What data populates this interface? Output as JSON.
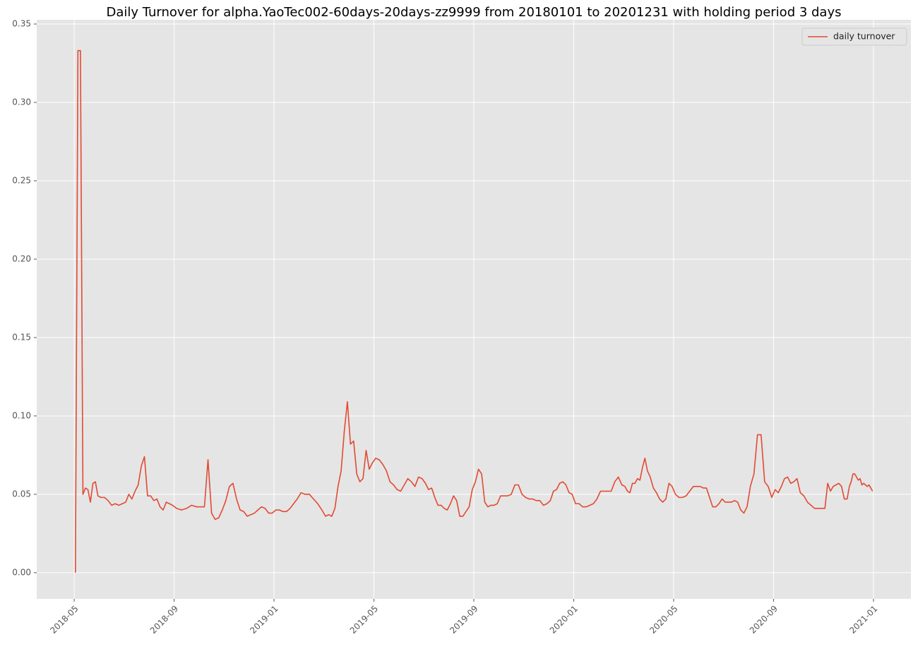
{
  "chart_data": {
    "type": "line",
    "title": "Daily Turnover for alpha.YaoTec002-60days-20days-zz9999 from 20180101 to 20201231 with holding period 3 days",
    "x": [
      "2018-05",
      "2018-05",
      "2018-05",
      "2018-05",
      "2018-05",
      "2018-05",
      "2018-05",
      "2018-05",
      "2018-05",
      "2018-05",
      "2018-06",
      "2018-06",
      "2018-06",
      "2018-06",
      "2018-06",
      "2018-06",
      "2018-06",
      "2018-07",
      "2018-07",
      "2018-07",
      "2018-07",
      "2018-07",
      "2018-07",
      "2018-07",
      "2018-07",
      "2018-08",
      "2018-08",
      "2018-08",
      "2018-08",
      "2018-08",
      "2018-08",
      "2018-08",
      "2018-08",
      "2018-09",
      "2018-09",
      "2018-09",
      "2018-09",
      "2018-09",
      "2018-10",
      "2018-10",
      "2018-10",
      "2018-10",
      "2018-10",
      "2018-10",
      "2018-10",
      "2018-11",
      "2018-11",
      "2018-11",
      "2018-11",
      "2018-11",
      "2018-11",
      "2018-11",
      "2018-12",
      "2018-12",
      "2018-12",
      "2018-12",
      "2018-12",
      "2018-12",
      "2018-12",
      "2019-01",
      "2019-01",
      "2019-01",
      "2019-01",
      "2019-01",
      "2019-01",
      "2019-01",
      "2019-02",
      "2019-02",
      "2019-02",
      "2019-02",
      "2019-02",
      "2019-02",
      "2019-03",
      "2019-03",
      "2019-03",
      "2019-03",
      "2019-03",
      "2019-03",
      "2019-03",
      "2019-03",
      "2019-04",
      "2019-04",
      "2019-04",
      "2019-04",
      "2019-04",
      "2019-04",
      "2019-04",
      "2019-04",
      "2019-05",
      "2019-05",
      "2019-05",
      "2019-05",
      "2019-05",
      "2019-05",
      "2019-05",
      "2019-06",
      "2019-06",
      "2019-06",
      "2019-06",
      "2019-06",
      "2019-06",
      "2019-06",
      "2019-07",
      "2019-07",
      "2019-07",
      "2019-07",
      "2019-07",
      "2019-07",
      "2019-07",
      "2019-07",
      "2019-08",
      "2019-08",
      "2019-08",
      "2019-08",
      "2019-08",
      "2019-08",
      "2019-08",
      "2019-08",
      "2019-09",
      "2019-09",
      "2019-09",
      "2019-09",
      "2019-09",
      "2019-09",
      "2019-09",
      "2019-09",
      "2019-10",
      "2019-10",
      "2019-10",
      "2019-10",
      "2019-10",
      "2019-10",
      "2019-10",
      "2019-11",
      "2019-11",
      "2019-11",
      "2019-11",
      "2019-11",
      "2019-11",
      "2019-11",
      "2019-12",
      "2019-12",
      "2019-12",
      "2019-12",
      "2019-12",
      "2019-12",
      "2019-12",
      "2019-12",
      "2020-01",
      "2020-01",
      "2020-01",
      "2020-01",
      "2020-01",
      "2020-01",
      "2020-01",
      "2020-02",
      "2020-02",
      "2020-02",
      "2020-02",
      "2020-02",
      "2020-02",
      "2020-02",
      "2020-03",
      "2020-03",
      "2020-03",
      "2020-03",
      "2020-03",
      "2020-03",
      "2020-03",
      "2020-03",
      "2020-03",
      "2020-03",
      "2020-04",
      "2020-04",
      "2020-04",
      "2020-04",
      "2020-04",
      "2020-04",
      "2020-04",
      "2020-04",
      "2020-05",
      "2020-05",
      "2020-05",
      "2020-05",
      "2020-05",
      "2020-05",
      "2020-05",
      "2020-06",
      "2020-06",
      "2020-06",
      "2020-06",
      "2020-06",
      "2020-06",
      "2020-06",
      "2020-06",
      "2020-07",
      "2020-07",
      "2020-07",
      "2020-07",
      "2020-07",
      "2020-07",
      "2020-07",
      "2020-07",
      "2020-08",
      "2020-08",
      "2020-08",
      "2020-08",
      "2020-08",
      "2020-08",
      "2020-08",
      "2020-09",
      "2020-09",
      "2020-09",
      "2020-09",
      "2020-09",
      "2020-09",
      "2020-09",
      "2020-09",
      "2020-10",
      "2020-10",
      "2020-10",
      "2020-10",
      "2020-10",
      "2020-10",
      "2020-10",
      "2020-11",
      "2020-11",
      "2020-11",
      "2020-11",
      "2020-11",
      "2020-11",
      "2020-11",
      "2020-11",
      "2020-11",
      "2020-12",
      "2020-12",
      "2020-12",
      "2020-12",
      "2020-12",
      "2020-12",
      "2020-12",
      "2020-12",
      "2020-12",
      "2020-12",
      "2020-12",
      "2020-12",
      "2020-12",
      "2020-12"
    ],
    "series": [
      {
        "name": "daily turnover",
        "color": "#e24a33",
        "values": [
          0,
          0.333,
          0.333,
          0.05,
          0.054,
          0.053,
          0.045,
          0.057,
          0.058,
          0.049,
          0.048,
          0.048,
          0.046,
          0.043,
          0.044,
          0.043,
          0.044,
          0.045,
          0.05,
          0.047,
          0.052,
          0.056,
          0.068,
          0.074,
          0.049,
          0.049,
          0.046,
          0.047,
          0.042,
          0.04,
          0.045,
          0.044,
          0.043,
          0.041,
          0.04,
          0.041,
          0.043,
          0.042,
          0.042,
          0.042,
          0.072,
          0.038,
          0.034,
          0.035,
          0.04,
          0.046,
          0.055,
          0.057,
          0.047,
          0.04,
          0.039,
          0.036,
          0.037,
          0.038,
          0.04,
          0.042,
          0.041,
          0.038,
          0.038,
          0.04,
          0.04,
          0.039,
          0.039,
          0.041,
          0.044,
          0.047,
          0.051,
          0.05,
          0.05,
          0.047,
          0.044,
          0.04,
          0.036,
          0.037,
          0.036,
          0.041,
          0.055,
          0.065,
          0.09,
          0.109,
          0.082,
          0.084,
          0.063,
          0.058,
          0.06,
          0.078,
          0.066,
          0.07,
          0.073,
          0.072,
          0.069,
          0.065,
          0.058,
          0.056,
          0.053,
          0.052,
          0.056,
          0.06,
          0.058,
          0.055,
          0.061,
          0.06,
          0.057,
          0.053,
          0.054,
          0.048,
          0.043,
          0.043,
          0.041,
          0.04,
          0.044,
          0.049,
          0.046,
          0.036,
          0.036,
          0.039,
          0.042,
          0.053,
          0.058,
          0.066,
          0.063,
          0.045,
          0.042,
          0.043,
          0.043,
          0.044,
          0.049,
          0.049,
          0.049,
          0.05,
          0.056,
          0.056,
          0.05,
          0.048,
          0.047,
          0.047,
          0.046,
          0.046,
          0.043,
          0.044,
          0.046,
          0.052,
          0.053,
          0.057,
          0.058,
          0.056,
          0.051,
          0.05,
          0.044,
          0.044,
          0.042,
          0.042,
          0.043,
          0.044,
          0.047,
          0.052,
          0.052,
          0.052,
          0.052,
          0.058,
          0.061,
          0.056,
          0.055,
          0.052,
          0.051,
          0.057,
          0.057,
          0.06,
          0.059,
          0.067,
          0.073,
          0.065,
          0.061,
          0.054,
          0.051,
          0.047,
          0.045,
          0.047,
          0.057,
          0.055,
          0.05,
          0.048,
          0.048,
          0.049,
          0.052,
          0.055,
          0.055,
          0.055,
          0.054,
          0.054,
          0.048,
          0.042,
          0.042,
          0.044,
          0.047,
          0.045,
          0.045,
          0.045,
          0.046,
          0.045,
          0.04,
          0.038,
          0.042,
          0.055,
          0.063,
          0.088,
          0.088,
          0.058,
          0.055,
          0.048,
          0.053,
          0.051,
          0.055,
          0.06,
          0.061,
          0.057,
          0.058,
          0.06,
          0.051,
          0.049,
          0.045,
          0.043,
          0.041,
          0.041,
          0.041,
          0.041,
          0.057,
          0.052,
          0.055,
          0.056,
          0.057,
          0.055,
          0.047,
          0.047,
          0.055,
          0.058,
          0.063,
          0.063,
          0.061,
          0.059,
          0.06,
          0.056,
          0.057,
          0.056,
          0.055,
          0.056,
          0.054,
          0.052
        ]
      }
    ],
    "xlim": [
      "2018-03",
      "2021-02"
    ],
    "xticks": [
      "2018-05",
      "2018-09",
      "2019-01",
      "2019-05",
      "2019-09",
      "2020-01",
      "2020-05",
      "2020-09",
      "2021-01"
    ],
    "ylim": [
      -0.0167,
      0.3527
    ],
    "yticks": [
      {
        "value": 0,
        "label": "0.00"
      },
      {
        "value": 0.05,
        "label": "0.05"
      },
      {
        "value": 0.1,
        "label": "0.10"
      },
      {
        "value": 0.15,
        "label": "0.15"
      },
      {
        "value": 0.2,
        "label": "0.20"
      },
      {
        "value": 0.25,
        "label": "0.25"
      },
      {
        "value": 0.3,
        "label": "0.30"
      },
      {
        "value": 0.35,
        "label": "0.35"
      }
    ],
    "grid": true,
    "legend": "upper right"
  }
}
